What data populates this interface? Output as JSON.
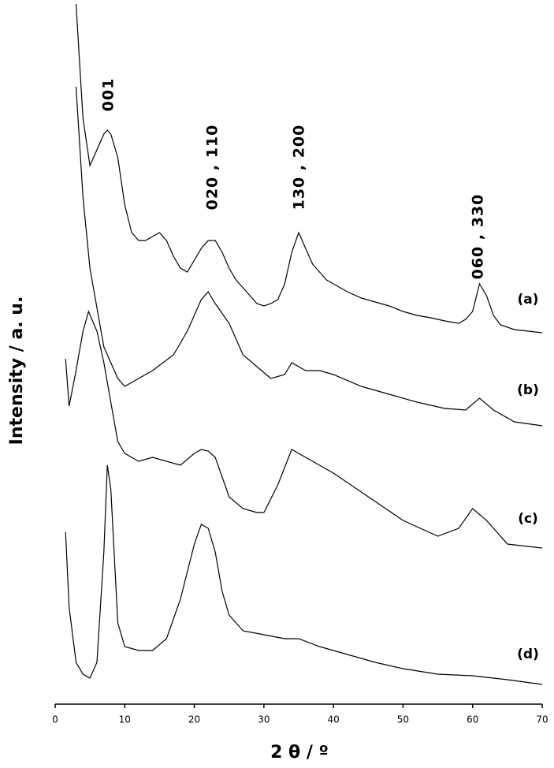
{
  "chart_data": {
    "type": "line",
    "x_label": "2 θ / º",
    "y_label": "Intensity / a. u.",
    "xlim": [
      0,
      70
    ],
    "xticks": [
      0,
      10,
      20,
      30,
      40,
      50,
      60,
      70
    ],
    "ylim": [
      0,
      900
    ],
    "annotations": [
      "001",
      "020 , 110",
      "130 , 200",
      "060 , 330"
    ],
    "series": [
      {
        "name": "(a)",
        "color": "#000000",
        "x": [
          3,
          4,
          5,
          6,
          7,
          7.5,
          8,
          9,
          10,
          11,
          12,
          13,
          14,
          15,
          16,
          17,
          18,
          19,
          20,
          21,
          22,
          23,
          24,
          25,
          26,
          27,
          28,
          29,
          30,
          31,
          32,
          33,
          34,
          35,
          36,
          37,
          38,
          39,
          40,
          42,
          44,
          46,
          48,
          50,
          52,
          54,
          56,
          58,
          59,
          60,
          61,
          62,
          63,
          64,
          66,
          68,
          70
        ],
        "values": [
          888,
          743,
          683,
          703,
          723,
          728,
          723,
          693,
          633,
          598,
          588,
          588,
          593,
          598,
          588,
          568,
          553,
          548,
          563,
          578,
          588,
          588,
          573,
          553,
          538,
          528,
          518,
          508,
          505,
          508,
          513,
          533,
          573,
          598,
          578,
          558,
          548,
          538,
          533,
          523,
          515,
          510,
          505,
          498,
          493,
          490,
          486,
          483,
          488,
          498,
          533,
          518,
          493,
          481,
          475,
          473,
          471
        ]
      },
      {
        "name": "(b)",
        "color": "#000000",
        "x": [
          3,
          4,
          5,
          7,
          9,
          10,
          12,
          14,
          17,
          19,
          21,
          22,
          23,
          25,
          27,
          29,
          31,
          33,
          34,
          36,
          38,
          40,
          44,
          48,
          52,
          56,
          59,
          61,
          63,
          66,
          70
        ],
        "values": [
          783,
          643,
          553,
          453,
          413,
          403,
          413,
          423,
          443,
          473,
          513,
          523,
          508,
          483,
          443,
          428,
          413,
          418,
          433,
          423,
          423,
          418,
          403,
          393,
          383,
          375,
          373,
          388,
          373,
          358,
          353
        ]
      },
      {
        "name": "(c)",
        "color": "#000000",
        "x": [
          1.5,
          2,
          3,
          4,
          4.8,
          6,
          7,
          8,
          9,
          10,
          12,
          14,
          16,
          18,
          20,
          21,
          22,
          23,
          25,
          27,
          29,
          30,
          32,
          34,
          36,
          40,
          45,
          50,
          55,
          58,
          60,
          62,
          65,
          70
        ],
        "values": [
          438,
          378,
          423,
          473,
          498,
          473,
          433,
          383,
          333,
          318,
          308,
          313,
          308,
          303,
          318,
          323,
          321,
          313,
          263,
          248,
          243,
          243,
          278,
          323,
          313,
          293,
          263,
          233,
          213,
          223,
          248,
          233,
          203,
          198
        ]
      },
      {
        "name": "(d)",
        "color": "#000000",
        "x": [
          1.5,
          2,
          3,
          4,
          5,
          6,
          7,
          7.5,
          8,
          9,
          10,
          12,
          14,
          16,
          18,
          20,
          21,
          22,
          23,
          24,
          25,
          27,
          30,
          33,
          35,
          38,
          42,
          46,
          50,
          55,
          60,
          65,
          70
        ],
        "values": [
          218,
          123,
          53,
          38,
          33,
          53,
          193,
          303,
          273,
          103,
          73,
          68,
          68,
          83,
          133,
          203,
          228,
          223,
          193,
          143,
          113,
          93,
          88,
          83,
          83,
          73,
          63,
          53,
          45,
          38,
          36,
          31,
          25
        ]
      }
    ]
  }
}
